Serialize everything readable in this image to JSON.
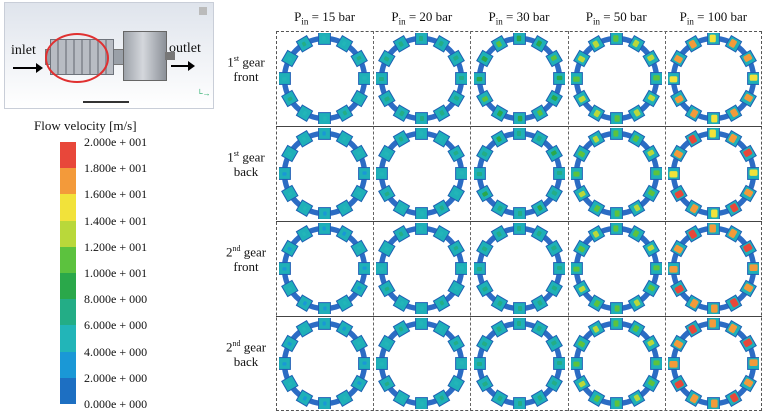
{
  "schematic": {
    "inlet_label": "inlet",
    "outlet_label": "outlet",
    "highlight_color": "#e03030"
  },
  "legend": {
    "title": "Flow velocity [m/s]",
    "ticks": [
      "2.000e + 001",
      "1.800e + 001",
      "1.600e + 001",
      "1.400e + 001",
      "1.200e + 001",
      "1.000e + 001",
      "8.000e + 000",
      "6.000e + 000",
      "4.000e + 000",
      "2.000e + 000",
      "0.000e + 000"
    ],
    "colors": [
      "#e8473a",
      "#f39a3a",
      "#f2e23a",
      "#b9d83a",
      "#5cc23e",
      "#2aa84a",
      "#23ad86",
      "#22b5b8",
      "#1a98d6",
      "#1d6fc2"
    ]
  },
  "columns": [
    {
      "p": "P",
      "sub": "in",
      "value": " = 15 bar"
    },
    {
      "p": "P",
      "sub": "in",
      "value": " = 20 bar"
    },
    {
      "p": "P",
      "sub": "in",
      "value": " = 30 bar"
    },
    {
      "p": "P",
      "sub": "in",
      "value": " = 50 bar"
    },
    {
      "p": "P",
      "sub": "in",
      "value": " = 100 bar"
    }
  ],
  "rows": [
    {
      "num": "1",
      "sup": "st",
      "word": " gear",
      "pos": "front"
    },
    {
      "num": "1",
      "sup": "st",
      "word": " gear",
      "pos": "back"
    },
    {
      "num": "2",
      "sup": "nd",
      "word": " gear",
      "pos": "front"
    },
    {
      "num": "2",
      "sup": "nd",
      "word": " gear",
      "pos": "back"
    }
  ],
  "velocity_levels": [
    [
      0.25,
      0.35,
      0.45,
      0.6,
      0.8
    ],
    [
      0.2,
      0.28,
      0.38,
      0.55,
      0.85
    ],
    [
      0.18,
      0.25,
      0.35,
      0.55,
      0.88
    ],
    [
      0.18,
      0.25,
      0.35,
      0.55,
      0.88
    ]
  ]
}
